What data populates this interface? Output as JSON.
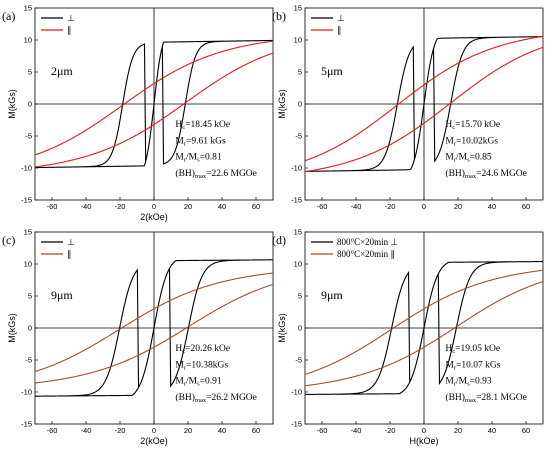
{
  "chart_data": [
    {
      "type": "line",
      "panel_label": "(a)",
      "size_label": "2μm",
      "xlabel": "2(kOe)",
      "ylabel": "M(kGs)",
      "xlim": [
        -70,
        70
      ],
      "ylim": [
        -15,
        15
      ],
      "xticks": [
        -60,
        -40,
        -20,
        0,
        20,
        40,
        60
      ],
      "yticks": [
        -15,
        -10,
        -5,
        0,
        5,
        10,
        15
      ],
      "legend": [
        "⊥",
        "∥"
      ],
      "colors": [
        "#000000",
        "#e8191e"
      ],
      "annotations": [
        {
          "main": "H",
          "sub": "c",
          "rest": "=18.45 kOe"
        },
        {
          "main": "M",
          "sub": "r",
          "rest": "=9.61 kGs"
        },
        {
          "main": "M",
          "sub": "r",
          "mid": "/M",
          "sub2": "s",
          "rest": "=0.81"
        },
        {
          "main": "(BH)",
          "sub": "max",
          "rest": "=22.6 MGOe"
        }
      ],
      "series": [
        {
          "name": "⊥",
          "hc": 18.45,
          "mr": 9.61,
          "ms": 11.9,
          "sq": 5,
          "w": 6,
          "slope": 0.004
        },
        {
          "name": "∥",
          "hc": 18.45,
          "mr": 3.2,
          "ms": 9.3,
          "sq": 1.2,
          "w": 55,
          "slope": 0.01
        }
      ]
    },
    {
      "type": "line",
      "panel_label": "(b)",
      "size_label": "5μm",
      "xlabel": "",
      "ylabel": "M(kGs)",
      "xlim": [
        -70,
        70
      ],
      "ylim": [
        -15,
        15
      ],
      "xticks": [
        -60,
        -40,
        -20,
        0,
        20,
        40,
        60
      ],
      "yticks": [
        -15,
        -10,
        -5,
        0,
        5,
        10,
        15
      ],
      "legend": [
        "⊥",
        "∥"
      ],
      "colors": [
        "#000000",
        "#e8191e"
      ],
      "annotations": [
        {
          "main": "H",
          "sub": "c",
          "rest": "=15.70 kOe"
        },
        {
          "main": "M",
          "sub": "r",
          "rest": "=10.02kGs"
        },
        {
          "main": "M",
          "sub": "r",
          "mid": "/M",
          "sub2": "s",
          "rest": "=0.85"
        },
        {
          "main": "(BH)",
          "sub": "max",
          "rest": "=24.6 MGOe"
        }
      ],
      "series": [
        {
          "name": "⊥",
          "hc": 15.7,
          "mr": 10.02,
          "ms": 11.8,
          "sq": 6,
          "w": 7,
          "slope": 0.004
        },
        {
          "name": "∥",
          "hc": 15.7,
          "mr": 3.0,
          "ms": 9.3,
          "sq": 1.2,
          "w": 55,
          "slope": 0.01
        }
      ]
    },
    {
      "type": "line",
      "panel_label": "(c)",
      "size_label": "9μm",
      "xlabel": "2(kOe)",
      "ylabel": "M(kGs)",
      "xlim": [
        -70,
        70
      ],
      "ylim": [
        -15,
        15
      ],
      "xticks": [
        -60,
        -40,
        -20,
        0,
        20,
        40,
        60
      ],
      "yticks": [
        -15,
        -10,
        -5,
        0,
        5,
        10,
        15
      ],
      "legend": [
        "⊥",
        "∥"
      ],
      "colors": [
        "#000000",
        "#a0522d"
      ],
      "annotations": [
        {
          "main": "H",
          "sub": "c",
          "rest": "=20.26 kOe"
        },
        {
          "main": "M",
          "sub": "r",
          "rest": "=10.38kGs"
        },
        {
          "main": "M",
          "sub": "r",
          "mid": "/M",
          "sub2": "s",
          "rest": "=0.91"
        },
        {
          "main": "(BH)",
          "sub": "max",
          "rest": "=26.2 MGOe"
        }
      ],
      "series": [
        {
          "name": "⊥",
          "hc": 20.26,
          "mr": 10.38,
          "ms": 11.4,
          "sq": 8,
          "w": 8,
          "slope": 0.002
        },
        {
          "name": "∥",
          "hc": 20.26,
          "mr": 3.0,
          "ms": 9.3,
          "sq": 1.2,
          "w": 55,
          "slope": 0.01
        }
      ]
    },
    {
      "type": "line",
      "panel_label": "(d)",
      "size_label": "9μm",
      "xlabel": "H(kOe)",
      "ylabel": "M(kGs)",
      "xlim": [
        -70,
        70
      ],
      "ylim": [
        -15,
        15
      ],
      "xticks": [
        -60,
        -40,
        -20,
        0,
        20,
        40,
        60
      ],
      "yticks": [
        -15,
        -10,
        -5,
        0,
        5,
        10,
        15
      ],
      "legend": [
        "800°C×20min ⊥",
        "800°C×20min ∥"
      ],
      "colors": [
        "#000000",
        "#a0522d"
      ],
      "annotations": [
        {
          "main": "H",
          "sub": "c",
          "rest": "=19.05 kOe"
        },
        {
          "main": "M",
          "sub": "r",
          "rest": "=10.07 kGs"
        },
        {
          "main": "M",
          "sub": "r",
          "mid": "/M",
          "sub2": "s",
          "rest": "=0.93"
        },
        {
          "main": "(BH)",
          "sub": "max",
          "rest": "=28.1 MGOe"
        }
      ],
      "series": [
        {
          "name": "800°C×20min ⊥",
          "hc": 19.05,
          "mr": 10.07,
          "ms": 10.8,
          "sq": 8,
          "w": 8,
          "slope": 0.002
        },
        {
          "name": "800°C×20min ∥",
          "hc": 19.05,
          "mr": 3.0,
          "ms": 9.6,
          "sq": 1.2,
          "w": 55,
          "slope": 0.01
        }
      ]
    }
  ]
}
